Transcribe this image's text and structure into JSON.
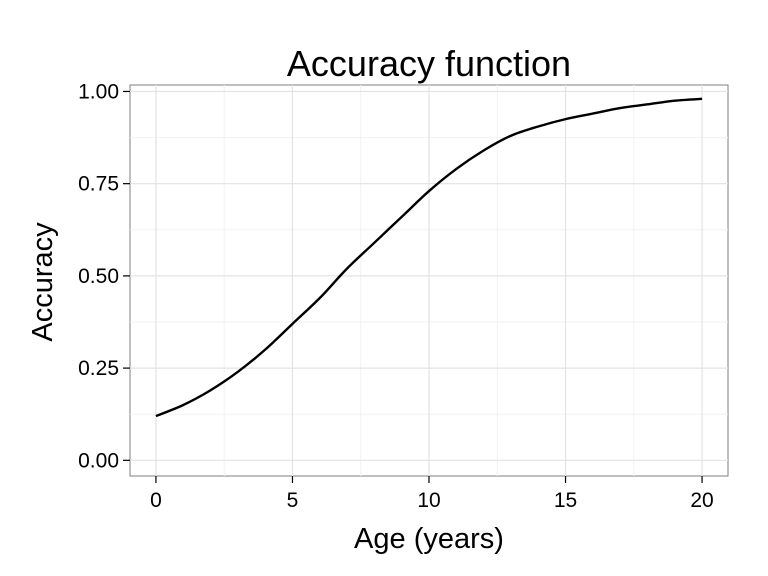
{
  "chart_data": {
    "type": "line",
    "title": "Accuracy function",
    "xlabel": "Age (years)",
    "ylabel": "Accuracy",
    "xlim": [
      -0.95,
      20.95
    ],
    "ylim": [
      -0.0425,
      1.0175
    ],
    "xticks": [
      0,
      5,
      10,
      15,
      20
    ],
    "xtick_labels": [
      "0",
      "5",
      "10",
      "15",
      "20"
    ],
    "yticks": [
      0,
      0.25,
      0.5,
      0.75,
      1
    ],
    "ytick_labels": [
      "0.00",
      "0.25",
      "0.50",
      "0.75",
      "1.00"
    ],
    "grid": true,
    "legend": "none",
    "series": [
      {
        "color": "#000000",
        "x": [
          0,
          1,
          2,
          3,
          4,
          5,
          6,
          7,
          8,
          9,
          10,
          11,
          12,
          13,
          14,
          15,
          16,
          17,
          18,
          19,
          20
        ],
        "y": [
          0.12,
          0.15,
          0.19,
          0.24,
          0.3,
          0.37,
          0.44,
          0.52,
          0.59,
          0.66,
          0.73,
          0.79,
          0.84,
          0.88,
          0.905,
          0.925,
          0.94,
          0.955,
          0.965,
          0.975,
          0.98
        ]
      }
    ]
  }
}
